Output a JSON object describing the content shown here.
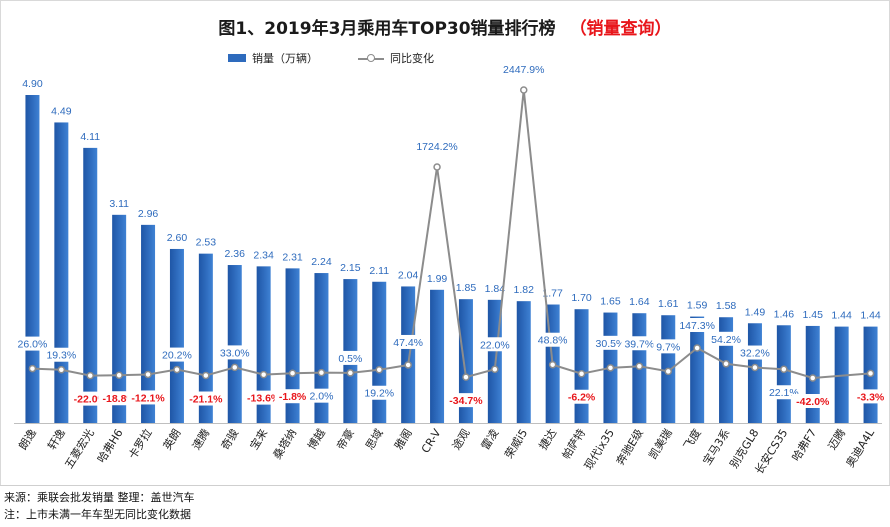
{
  "header": {
    "title": "图1、2019年3月乘用车TOP30销量排行榜",
    "subtitle": "（销量查询）"
  },
  "legend": {
    "bar_label": "销量（万辆）",
    "line_label": "同比变化"
  },
  "footnotes": {
    "source": "来源：乘联会批发销量 整理：盖世汽车",
    "note": "注：上市未满一年车型无同比变化数据"
  },
  "colors": {
    "bar": "#2e6bbd",
    "line": "#8c8c8c",
    "positive_label": "#2e6bbd",
    "negative_label": "#e8161b"
  },
  "chart_data": {
    "type": "bar",
    "categories": [
      "朗逸",
      "轩逸",
      "五菱宏光",
      "哈弗H6",
      "卡罗拉",
      "英朗",
      "速腾",
      "奇骏",
      "宝来",
      "桑塔纳",
      "博越",
      "帝豪",
      "思域",
      "雅阁",
      "CR-V",
      "途观",
      "雷凌",
      "荣威i5",
      "捷达",
      "帕萨特",
      "现代ix35",
      "奔驰E级",
      "凯美瑞",
      "飞度",
      "宝马3系",
      "别克GL8",
      "长安CS35",
      "哈弗F7",
      "迈腾",
      "奥迪A4L"
    ],
    "series": [
      {
        "name": "销量（万辆）",
        "type": "bar",
        "values": [
          4.9,
          4.49,
          4.11,
          3.11,
          2.96,
          2.6,
          2.53,
          2.36,
          2.34,
          2.31,
          2.24,
          2.15,
          2.11,
          2.04,
          1.99,
          1.85,
          1.84,
          1.82,
          1.77,
          1.7,
          1.65,
          1.64,
          1.61,
          1.59,
          1.58,
          1.49,
          1.46,
          1.45,
          1.44,
          1.44
        ],
        "labels": [
          "4.90",
          "4.49",
          "4.11",
          "3.11",
          "2.96",
          "2.60",
          "2.53",
          "2.36",
          "2.34",
          "2.31",
          "2.24",
          "2.15",
          "2.11",
          "2.04",
          "1.99",
          "1.85",
          "1.84",
          "1.82",
          "1.77",
          "1.70",
          "1.65",
          "1.64",
          "1.61",
          "1.59",
          "1.58",
          "1.49",
          "1.46",
          "1.45",
          "1.44",
          "1.44"
        ],
        "ylim": [
          0,
          5.1
        ]
      },
      {
        "name": "同比变化",
        "type": "line",
        "values": [
          26.0,
          19.3,
          -22.0,
          -18.8,
          -12.1,
          20.2,
          -21.1,
          33.0,
          -13.6,
          -1.8,
          2.0,
          0.5,
          19.2,
          47.4,
          1724.2,
          -34.7,
          22.0,
          2447.9,
          48.8,
          -6.2,
          30.5,
          39.7,
          9.7,
          147.3,
          54.2,
          32.2,
          22.1,
          -42.0,
          null,
          -3.3
        ],
        "labels": [
          "26.0%",
          "19.3%",
          "-22.0%",
          "-18.8%",
          "-12.1%",
          "20.2%",
          "-21.1%",
          "33.0%",
          "-13.6%",
          "-1.8%",
          "2.0%",
          "0.5%",
          "19.2%",
          "47.4%",
          "1724.2%",
          "-34.7%",
          "22.0%",
          "2447.9%",
          "48.8%",
          "-6.2%",
          "30.5%",
          "39.7%",
          "9.7%",
          "147.3%",
          "54.2%",
          "32.2%",
          "22.1%",
          "-42.0%",
          "",
          "-3.3%"
        ]
      }
    ],
    "grid": false,
    "legend_position": "top"
  }
}
